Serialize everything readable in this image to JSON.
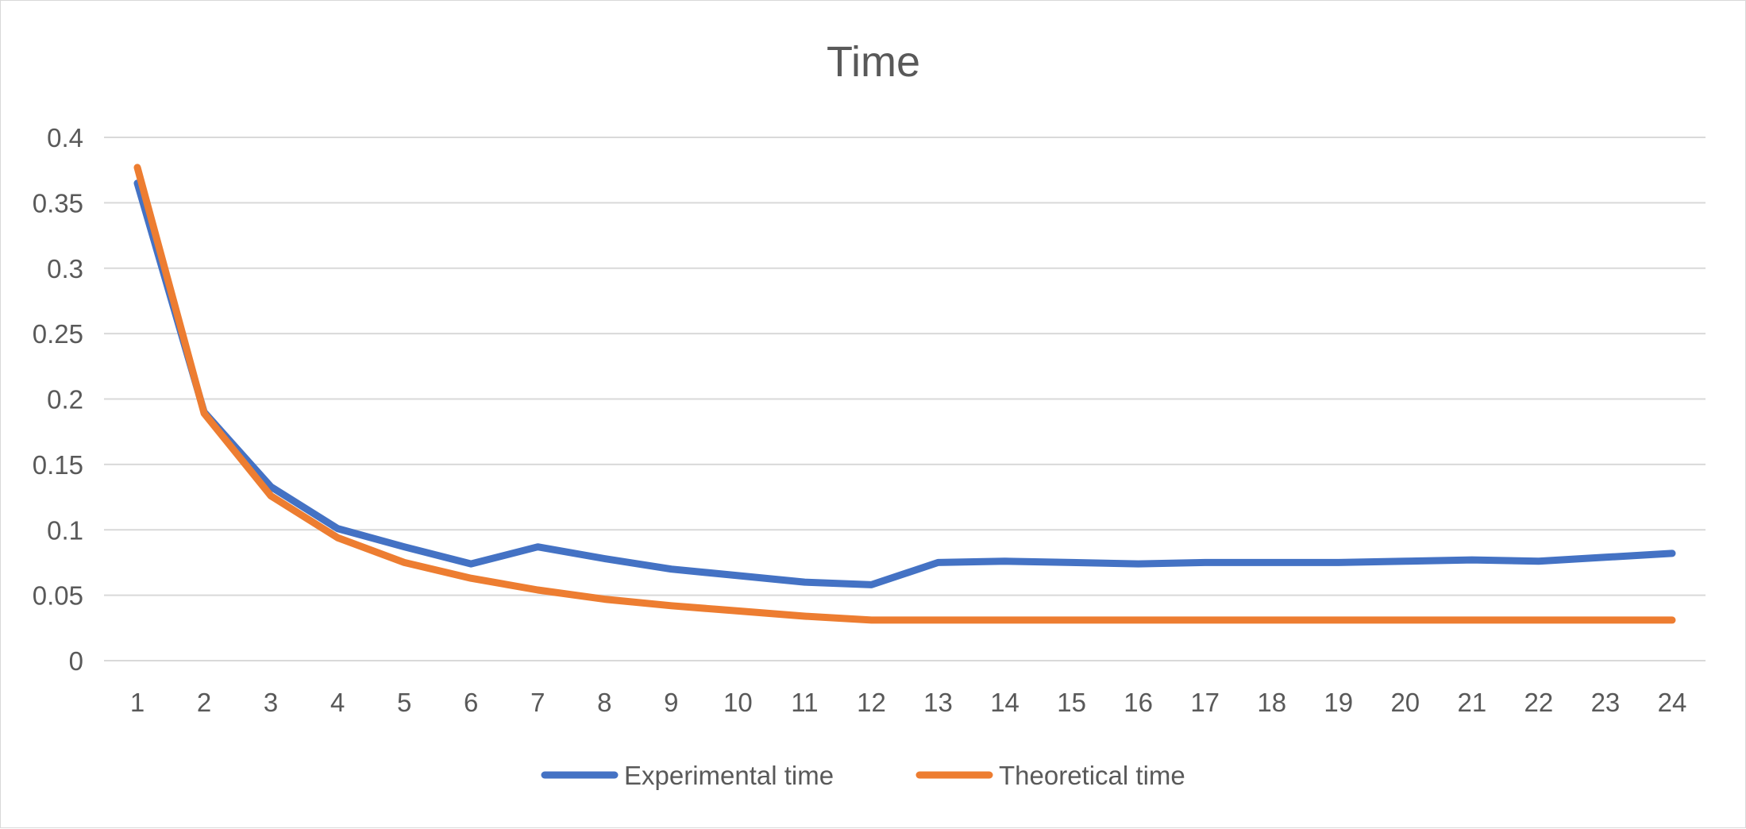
{
  "chart_data": {
    "type": "line",
    "title": "Time",
    "xlabel": "",
    "ylabel": "",
    "categories": [
      "1",
      "2",
      "3",
      "4",
      "5",
      "6",
      "7",
      "8",
      "9",
      "10",
      "11",
      "12",
      "13",
      "14",
      "15",
      "16",
      "17",
      "18",
      "19",
      "20",
      "21",
      "22",
      "23",
      "24"
    ],
    "series": [
      {
        "name": "Experimental time",
        "color": "#4472c4",
        "values": [
          0.365,
          0.19,
          0.133,
          0.101,
          0.087,
          0.074,
          0.087,
          0.078,
          0.07,
          0.065,
          0.06,
          0.058,
          0.075,
          0.076,
          0.075,
          0.074,
          0.075,
          0.075,
          0.075,
          0.076,
          0.077,
          0.076,
          0.079,
          0.082
        ]
      },
      {
        "name": "Theoretical time",
        "color": "#ed7d31",
        "values": [
          0.377,
          0.189,
          0.126,
          0.094,
          0.075,
          0.063,
          0.054,
          0.047,
          0.042,
          0.038,
          0.034,
          0.031,
          0.031,
          0.031,
          0.031,
          0.031,
          0.031,
          0.031,
          0.031,
          0.031,
          0.031,
          0.031,
          0.031,
          0.031
        ]
      }
    ],
    "ylim": [
      0,
      0.4
    ],
    "yticks": [
      "0",
      "0.05",
      "0.1",
      "0.15",
      "0.2",
      "0.25",
      "0.3",
      "0.35",
      "0.4"
    ],
    "grid": true,
    "legend": "bottom"
  }
}
